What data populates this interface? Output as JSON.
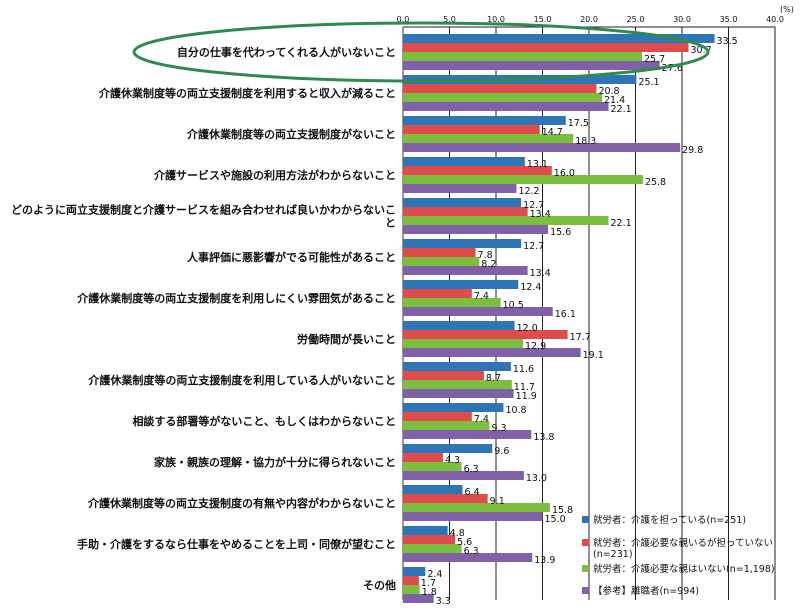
{
  "chart_data": {
    "type": "bar",
    "orientation": "horizontal",
    "unit": "(%)",
    "xlim": [
      0,
      40
    ],
    "xticks": [
      "0.0",
      "5.0",
      "10.0",
      "15.0",
      "20.0",
      "25.0",
      "30.0",
      "35.0",
      "40.0"
    ],
    "grid": true,
    "legend_position": "bottom-right",
    "categories": [
      [
        "自分の仕事を代わってくれる人がいないこと"
      ],
      [
        "介護休業制度等の両立支援制度を利用すると収入が減ること"
      ],
      [
        "介護休業制度等の両立支援制度がないこと"
      ],
      [
        "介護サービスや施設の利用方法がわからないこと"
      ],
      [
        "どのように両立支援制度と介護サービスを組み合わせれば良いかわからないこ",
        "と"
      ],
      [
        "人事評価に悪影響がでる可能性があること"
      ],
      [
        "介護休業制度等の両立支援制度を利用しにくい雰囲気があること"
      ],
      [
        "労働時間が長いこと"
      ],
      [
        "介護休業制度等の両立支援制度を利用している人がいないこと"
      ],
      [
        "相談する部署等がないこと、もしくはわからないこと"
      ],
      [
        "家族・親族の理解・協力が十分に得られないこと"
      ],
      [
        "介護休業制度等の両立支援制度の有無や内容がわからないこと"
      ],
      [
        "手助・介護をするなら仕事をやめることを上司・同僚が望むこと"
      ],
      [
        "その他"
      ]
    ],
    "series": [
      {
        "name": "就労者：介護を担っている(n=251)",
        "color": "#2e75b6",
        "values": [
          33.5,
          25.1,
          17.5,
          13.1,
          12.7,
          12.7,
          12.4,
          12.0,
          11.6,
          10.8,
          9.6,
          6.4,
          4.8,
          2.4
        ]
      },
      {
        "name": "就労者：介護必要な親いるが担っていない(n=231)",
        "color": "#e04b4b",
        "values": [
          30.7,
          20.8,
          14.7,
          16.0,
          13.4,
          7.8,
          7.4,
          17.7,
          8.7,
          7.4,
          4.3,
          9.1,
          5.6,
          1.7
        ]
      },
      {
        "name": "就労者：介護必要な親はいない(n=1,198)",
        "color": "#7cbf3f",
        "values": [
          25.7,
          21.4,
          18.3,
          25.8,
          22.1,
          8.2,
          10.5,
          12.9,
          11.7,
          9.3,
          6.3,
          15.8,
          6.3,
          1.8
        ]
      },
      {
        "name": "【参考】離職者(n=994)",
        "color": "#8061a8",
        "values": [
          27.6,
          22.1,
          29.8,
          12.2,
          15.6,
          13.4,
          16.1,
          19.1,
          11.9,
          13.8,
          13.0,
          15.0,
          13.9,
          3.3
        ]
      }
    ],
    "legend": [
      [
        "就労者：介護を担っている(n=251)"
      ],
      [
        "就労者：介護必要な親いるが担っていない",
        "(n=231)"
      ],
      [
        "就労者：介護必要な親はいない(n=1,198)"
      ],
      [
        "【参考】離職者(n=994)"
      ]
    ],
    "highlight_color": "#2f8a4e"
  }
}
